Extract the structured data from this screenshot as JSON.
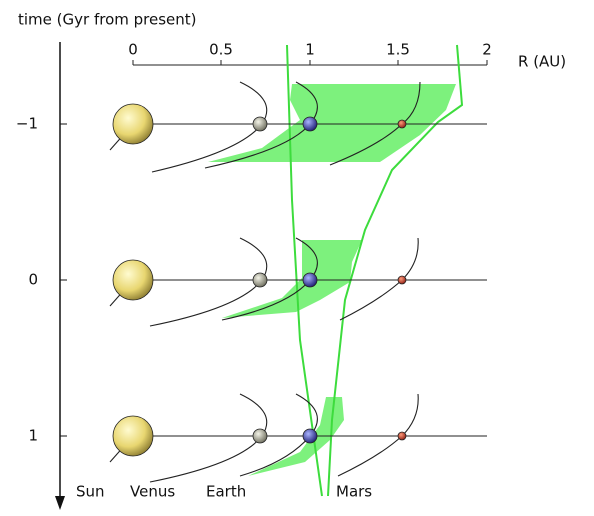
{
  "axis": {
    "title": "time (Gyr from present)",
    "r_label": "R (AU)",
    "r_ticks": [
      "0",
      "0.5",
      "1",
      "1.5",
      "2"
    ],
    "time_ticks": [
      "−1",
      "0",
      "1"
    ]
  },
  "bodies": [
    "Sun",
    "Venus",
    "Earth",
    "Mars"
  ]
}
